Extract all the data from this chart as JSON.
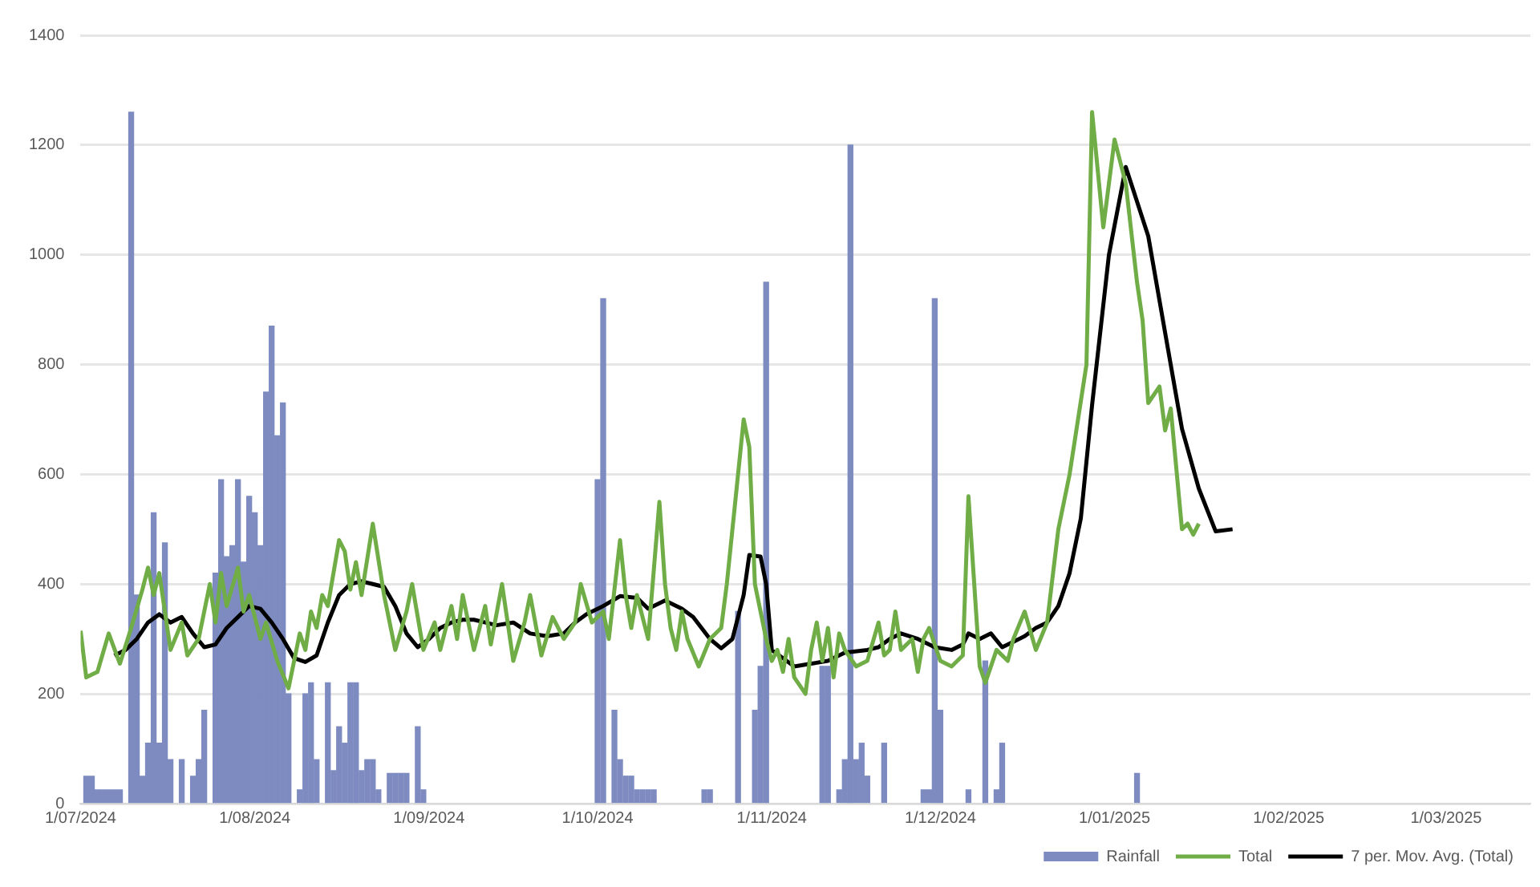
{
  "chart_data": {
    "type": "line",
    "xlim": [
      "2024-07-01",
      "2025-03-16"
    ],
    "xticks": [
      {
        "value": "2024-07-01",
        "label": "1/07/2024"
      },
      {
        "value": "2024-08-01",
        "label": "1/08/2024"
      },
      {
        "value": "2024-09-01",
        "label": "1/09/2024"
      },
      {
        "value": "2024-10-01",
        "label": "1/10/2024"
      },
      {
        "value": "2024-11-01",
        "label": "1/11/2024"
      },
      {
        "value": "2024-12-01",
        "label": "1/12/2024"
      },
      {
        "value": "2025-01-01",
        "label": "1/01/2025"
      },
      {
        "value": "2025-02-01",
        "label": "1/02/2025"
      },
      {
        "value": "2025-03-01",
        "label": "1/03/2025"
      }
    ],
    "ylim": [
      0,
      1400
    ],
    "yticks": [
      0,
      200,
      400,
      600,
      800,
      1000,
      1200,
      1400
    ],
    "grid": "y",
    "legend": "bottom right",
    "marker": "none",
    "line_style": "solid",
    "series": [
      {
        "name": "Rainfall",
        "type": "bar",
        "color": "#7d8bc0",
        "x": [
          "2024-07-02",
          "2024-07-03",
          "2024-07-04",
          "2024-07-05",
          "2024-07-06",
          "2024-07-07",
          "2024-07-08",
          "2024-07-10",
          "2024-07-11",
          "2024-07-12",
          "2024-07-13",
          "2024-07-14",
          "2024-07-15",
          "2024-07-16",
          "2024-07-17",
          "2024-07-19",
          "2024-07-21",
          "2024-07-22",
          "2024-07-23",
          "2024-07-25",
          "2024-07-26",
          "2024-07-27",
          "2024-07-28",
          "2024-07-29",
          "2024-07-30",
          "2024-07-31",
          "2024-08-01",
          "2024-08-02",
          "2024-08-03",
          "2024-08-04",
          "2024-08-05",
          "2024-08-06",
          "2024-08-07",
          "2024-08-09",
          "2024-08-10",
          "2024-08-11",
          "2024-08-12",
          "2024-08-14",
          "2024-08-15",
          "2024-08-16",
          "2024-08-17",
          "2024-08-18",
          "2024-08-19",
          "2024-08-20",
          "2024-08-21",
          "2024-08-22",
          "2024-08-23",
          "2024-08-25",
          "2024-08-26",
          "2024-08-27",
          "2024-08-28",
          "2024-08-30",
          "2024-08-31",
          "2024-10-01",
          "2024-10-02",
          "2024-10-04",
          "2024-10-05",
          "2024-10-06",
          "2024-10-07",
          "2024-10-08",
          "2024-10-09",
          "2024-10-10",
          "2024-10-11",
          "2024-10-20",
          "2024-10-21",
          "2024-10-26",
          "2024-10-29",
          "2024-10-30",
          "2024-10-31",
          "2024-11-10",
          "2024-11-11",
          "2024-11-13",
          "2024-11-14",
          "2024-11-15",
          "2024-11-16",
          "2024-11-17",
          "2024-11-18",
          "2024-11-21",
          "2024-11-28",
          "2024-11-29",
          "2024-11-30",
          "2024-12-01",
          "2024-12-06",
          "2024-12-09",
          "2024-12-11",
          "2024-12-12",
          "2025-01-05"
        ],
        "values": [
          50,
          50,
          25,
          25,
          25,
          25,
          25,
          1260,
          380,
          50,
          110,
          530,
          110,
          475,
          80,
          80,
          50,
          80,
          170,
          420,
          590,
          450,
          470,
          590,
          440,
          560,
          530,
          470,
          750,
          870,
          670,
          730,
          200,
          25,
          200,
          220,
          80,
          220,
          60,
          140,
          110,
          220,
          220,
          60,
          80,
          80,
          25,
          55,
          55,
          55,
          55,
          140,
          25,
          590,
          920,
          170,
          80,
          50,
          50,
          25,
          25,
          25,
          25,
          25,
          25,
          350,
          170,
          250,
          950,
          250,
          250,
          25,
          80,
          1200,
          80,
          110,
          50,
          110,
          25,
          25,
          920,
          170,
          25,
          260,
          25,
          110,
          55
        ]
      },
      {
        "name": "Total",
        "color": "#70ad47",
        "x": [
          "2024-07-01",
          "2024-07-02",
          "2024-07-04",
          "2024-07-06",
          "2024-07-08",
          "2024-07-10",
          "2024-07-12",
          "2024-07-13",
          "2024-07-14",
          "2024-07-15",
          "2024-07-17",
          "2024-07-19",
          "2024-07-20",
          "2024-07-22",
          "2024-07-24",
          "2024-07-25",
          "2024-07-26",
          "2024-07-27",
          "2024-07-29",
          "2024-07-30",
          "2024-07-31",
          "2024-08-02",
          "2024-08-03",
          "2024-08-05",
          "2024-08-07",
          "2024-08-09",
          "2024-08-10",
          "2024-08-11",
          "2024-08-12",
          "2024-08-13",
          "2024-08-14",
          "2024-08-16",
          "2024-08-17",
          "2024-08-18",
          "2024-08-19",
          "2024-08-20",
          "2024-08-22",
          "2024-08-24",
          "2024-08-26",
          "2024-08-28",
          "2024-08-29",
          "2024-08-31",
          "2024-09-02",
          "2024-09-03",
          "2024-09-05",
          "2024-09-06",
          "2024-09-07",
          "2024-09-09",
          "2024-09-11",
          "2024-09-12",
          "2024-09-14",
          "2024-09-16",
          "2024-09-18",
          "2024-09-19",
          "2024-09-21",
          "2024-09-23",
          "2024-09-25",
          "2024-09-27",
          "2024-09-28",
          "2024-09-30",
          "2024-10-02",
          "2024-10-03",
          "2024-10-05",
          "2024-10-06",
          "2024-10-07",
          "2024-10-08",
          "2024-10-10",
          "2024-10-12",
          "2024-10-13",
          "2024-10-14",
          "2024-10-15",
          "2024-10-16",
          "2024-10-17",
          "2024-10-19",
          "2024-10-21",
          "2024-10-23",
          "2024-10-24",
          "2024-10-26",
          "2024-10-27",
          "2024-10-28",
          "2024-10-29",
          "2024-10-30",
          "2024-10-31",
          "2024-11-01",
          "2024-11-02",
          "2024-11-03",
          "2024-11-04",
          "2024-11-05",
          "2024-11-07",
          "2024-11-08",
          "2024-11-09",
          "2024-11-10",
          "2024-11-11",
          "2024-11-12",
          "2024-11-13",
          "2024-11-14",
          "2024-11-16",
          "2024-11-18",
          "2024-11-20",
          "2024-11-21",
          "2024-11-22",
          "2024-11-23",
          "2024-11-24",
          "2024-11-26",
          "2024-11-27",
          "2024-11-28",
          "2024-11-29",
          "2024-12-01",
          "2024-12-03",
          "2024-12-05",
          "2024-12-06",
          "2024-12-08",
          "2024-12-09",
          "2024-12-11",
          "2024-12-13",
          "2024-12-14",
          "2024-12-16",
          "2024-12-18",
          "2024-12-20",
          "2024-12-22",
          "2024-12-24",
          "2024-12-27",
          "2024-12-28",
          "2024-12-30",
          "2025-01-01",
          "2025-01-03",
          "2025-01-05",
          "2025-01-06",
          "2025-01-07",
          "2025-01-09",
          "2025-01-10",
          "2025-01-11",
          "2025-01-13",
          "2025-01-14",
          "2025-01-15",
          "2025-01-16"
        ],
        "values": [
          315,
          230,
          240,
          310,
          255,
          320,
          390,
          430,
          380,
          420,
          280,
          330,
          270,
          300,
          400,
          330,
          420,
          360,
          430,
          350,
          380,
          300,
          330,
          260,
          210,
          310,
          280,
          350,
          320,
          380,
          360,
          480,
          460,
          390,
          440,
          380,
          510,
          380,
          280,
          350,
          400,
          280,
          330,
          280,
          360,
          300,
          380,
          280,
          360,
          290,
          400,
          260,
          330,
          380,
          270,
          340,
          300,
          330,
          400,
          330,
          350,
          300,
          480,
          380,
          320,
          380,
          300,
          550,
          400,
          320,
          280,
          350,
          300,
          250,
          300,
          320,
          400,
          600,
          700,
          650,
          400,
          350,
          300,
          260,
          280,
          240,
          300,
          230,
          200,
          280,
          330,
          260,
          320,
          230,
          310,
          280,
          250,
          260,
          330,
          270,
          280,
          350,
          280,
          300,
          240,
          300,
          320,
          260,
          250,
          270,
          560,
          250,
          220,
          280,
          260,
          300,
          350,
          280,
          330,
          500,
          600,
          800,
          1260,
          1050,
          1210,
          1130,
          950,
          880,
          730,
          760,
          680,
          720,
          500,
          510,
          490,
          510
        ]
      },
      {
        "name": "7 per. Mov. Avg. (Total)",
        "color": "#000000",
        "x": [
          "2024-07-07",
          "2024-07-09",
          "2024-07-11",
          "2024-07-13",
          "2024-07-15",
          "2024-07-17",
          "2024-07-19",
          "2024-07-21",
          "2024-07-23",
          "2024-07-25",
          "2024-07-27",
          "2024-07-29",
          "2024-07-31",
          "2024-08-02",
          "2024-08-04",
          "2024-08-06",
          "2024-08-08",
          "2024-08-10",
          "2024-08-12",
          "2024-08-14",
          "2024-08-16",
          "2024-08-18",
          "2024-08-20",
          "2024-08-22",
          "2024-08-24",
          "2024-08-26",
          "2024-08-28",
          "2024-08-30",
          "2024-09-01",
          "2024-09-03",
          "2024-09-05",
          "2024-09-07",
          "2024-09-09",
          "2024-09-11",
          "2024-09-13",
          "2024-09-16",
          "2024-09-19",
          "2024-09-22",
          "2024-09-25",
          "2024-09-27",
          "2024-09-29",
          "2024-10-02",
          "2024-10-05",
          "2024-10-08",
          "2024-10-10",
          "2024-10-13",
          "2024-10-16",
          "2024-10-18",
          "2024-10-21",
          "2024-10-23",
          "2024-10-25",
          "2024-10-27",
          "2024-10-28",
          "2024-10-30",
          "2024-10-31",
          "2024-11-01",
          "2024-11-03",
          "2024-11-05",
          "2024-11-08",
          "2024-11-11",
          "2024-11-14",
          "2024-11-18",
          "2024-11-20",
          "2024-11-22",
          "2024-11-24",
          "2024-11-27",
          "2024-11-30",
          "2024-12-03",
          "2024-12-05",
          "2024-12-06",
          "2024-12-08",
          "2024-12-10",
          "2024-12-12",
          "2024-12-14",
          "2024-12-16",
          "2024-12-18",
          "2024-12-20",
          "2024-12-22",
          "2024-12-24",
          "2024-12-26",
          "2024-12-28",
          "2024-12-31",
          "2025-01-03",
          "2025-01-07",
          "2025-01-10",
          "2025-01-13",
          "2025-01-16",
          "2025-01-19",
          "2025-01-22"
        ],
        "values": [
          270,
          280,
          300,
          330,
          345,
          330,
          340,
          310,
          285,
          290,
          320,
          340,
          360,
          355,
          330,
          300,
          265,
          258,
          270,
          330,
          380,
          400,
          405,
          400,
          395,
          360,
          310,
          285,
          300,
          320,
          330,
          335,
          335,
          330,
          325,
          330,
          310,
          305,
          310,
          330,
          345,
          360,
          378,
          375,
          355,
          370,
          355,
          340,
          300,
          283,
          300,
          380,
          453,
          450,
          400,
          280,
          265,
          250,
          255,
          260,
          275,
          280,
          285,
          300,
          310,
          300,
          285,
          280,
          290,
          310,
          300,
          310,
          285,
          295,
          305,
          320,
          330,
          360,
          420,
          520,
          726,
          1000,
          1160,
          1034,
          858,
          683,
          574,
          496,
          500
        ]
      }
    ]
  }
}
